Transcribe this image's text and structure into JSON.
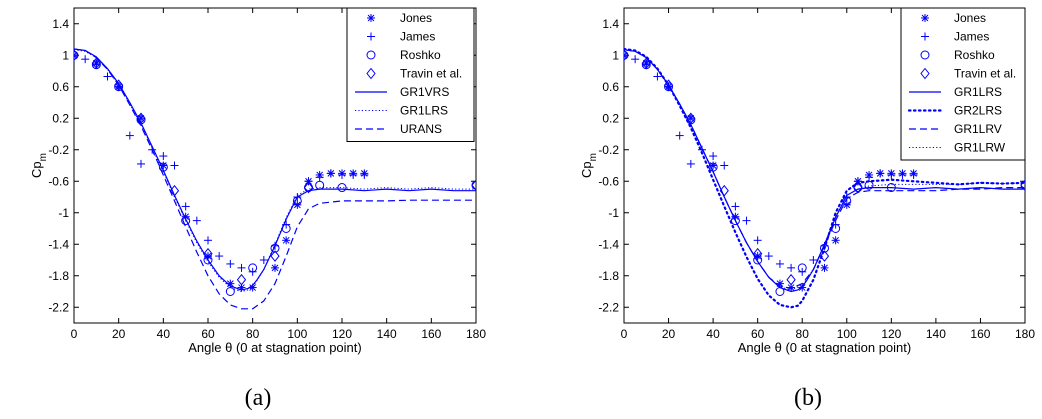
{
  "chart_data": [
    {
      "type": "line",
      "caption": "(a)",
      "xlabel": "Angle θ (0 at stagnation point)",
      "ylabel": "Cp",
      "ylabel_sub": "m",
      "xlim": [
        0,
        180
      ],
      "ylim": [
        -2.4,
        1.6
      ],
      "xticks": [
        "0",
        "20",
        "40",
        "60",
        "80",
        "100",
        "120",
        "140",
        "160",
        "180"
      ],
      "yticks": [
        "1.4",
        "1",
        "0.6",
        "0.2",
        "-0.2",
        "-0.6",
        "-1",
        "-1.4",
        "-1.8",
        "-2.2"
      ],
      "legend_position": "top-right",
      "series": [
        {
          "name": "Jones",
          "kind": "marker",
          "marker": "asterisk",
          "x": [
            0,
            10,
            20,
            30,
            40,
            50,
            60,
            70,
            75,
            80,
            90,
            95,
            100,
            105,
            110,
            115,
            120,
            125,
            130
          ],
          "y": [
            1.0,
            0.9,
            0.6,
            0.2,
            -0.4,
            -1.05,
            -1.55,
            -1.9,
            -1.95,
            -1.95,
            -1.7,
            -1.35,
            -0.9,
            -0.6,
            -0.52,
            -0.5,
            -0.5,
            -0.5,
            -0.5
          ]
        },
        {
          "name": "James",
          "kind": "marker",
          "marker": "plus",
          "x": [
            0,
            5,
            10,
            15,
            20,
            25,
            30,
            35,
            40,
            45,
            50,
            55,
            60,
            65,
            70,
            75,
            80,
            85,
            90,
            95,
            100,
            105,
            110,
            115,
            120,
            125,
            130
          ],
          "y": [
            0.98,
            0.95,
            0.88,
            0.73,
            0.6,
            -0.02,
            -0.38,
            -0.2,
            -0.28,
            -0.4,
            -0.92,
            -1.1,
            -1.35,
            -1.55,
            -1.65,
            -1.7,
            -1.75,
            -1.6,
            -1.42,
            -1.15,
            -0.8,
            -0.6,
            -0.55,
            -0.5,
            -0.52,
            -0.52,
            -0.52
          ]
        },
        {
          "name": "Roshko",
          "kind": "marker",
          "marker": "circle",
          "x": [
            0,
            10,
            20,
            30,
            40,
            50,
            60,
            70,
            80,
            90,
            95,
            100,
            105,
            110,
            120,
            180
          ],
          "y": [
            1.0,
            0.88,
            0.6,
            0.18,
            -0.42,
            -1.1,
            -1.6,
            -2.0,
            -1.7,
            -1.45,
            -1.2,
            -0.85,
            -0.68,
            -0.65,
            -0.68,
            -0.65
          ]
        },
        {
          "name": "Travin et al.",
          "kind": "marker",
          "marker": "diamond",
          "x": [
            0,
            10,
            20,
            30,
            45,
            60,
            75,
            90,
            105,
            180
          ],
          "y": [
            1.0,
            0.9,
            0.62,
            0.2,
            -0.72,
            -1.52,
            -1.85,
            -1.55,
            -0.68,
            -0.65
          ]
        },
        {
          "name": "GR1VRS",
          "kind": "line",
          "style": "solid",
          "x": [
            0,
            5,
            10,
            15,
            20,
            25,
            30,
            35,
            40,
            45,
            50,
            55,
            60,
            65,
            70,
            75,
            78,
            80,
            82,
            85,
            90,
            95,
            100,
            105,
            110,
            120,
            130,
            140,
            150,
            160,
            170,
            180
          ],
          "y": [
            1.08,
            1.06,
            0.98,
            0.83,
            0.64,
            0.4,
            0.14,
            -0.16,
            -0.46,
            -0.78,
            -1.08,
            -1.36,
            -1.6,
            -1.8,
            -1.93,
            -1.98,
            -1.96,
            -1.92,
            -1.85,
            -1.72,
            -1.42,
            -1.08,
            -0.8,
            -0.72,
            -0.7,
            -0.7,
            -0.72,
            -0.7,
            -0.72,
            -0.7,
            -0.72,
            -0.72
          ]
        },
        {
          "name": "GR1LRS",
          "kind": "line",
          "style": "dotted",
          "x": [
            0,
            5,
            10,
            15,
            20,
            25,
            30,
            35,
            40,
            45,
            50,
            55,
            60,
            65,
            70,
            75,
            78,
            80,
            82,
            85,
            90,
            95,
            100,
            105,
            110,
            120,
            130,
            140,
            150,
            160,
            170,
            180
          ],
          "y": [
            1.07,
            1.05,
            0.97,
            0.82,
            0.62,
            0.38,
            0.12,
            -0.18,
            -0.48,
            -0.8,
            -1.1,
            -1.38,
            -1.62,
            -1.82,
            -1.95,
            -2.0,
            -1.98,
            -1.94,
            -1.86,
            -1.72,
            -1.4,
            -1.06,
            -0.78,
            -0.7,
            -0.68,
            -0.68,
            -0.7,
            -0.68,
            -0.7,
            -0.68,
            -0.7,
            -0.7
          ]
        },
        {
          "name": "URANS",
          "kind": "line",
          "style": "dashed",
          "x": [
            0,
            5,
            10,
            15,
            20,
            25,
            30,
            35,
            40,
            45,
            50,
            55,
            60,
            65,
            70,
            75,
            80,
            85,
            90,
            95,
            100,
            105,
            110,
            120,
            130,
            140,
            150,
            160,
            170,
            180
          ],
          "y": [
            1.08,
            1.06,
            0.97,
            0.82,
            0.62,
            0.37,
            0.1,
            -0.2,
            -0.52,
            -0.85,
            -1.18,
            -1.5,
            -1.8,
            -2.03,
            -2.17,
            -2.22,
            -2.22,
            -2.12,
            -1.9,
            -1.55,
            -1.18,
            -0.95,
            -0.88,
            -0.85,
            -0.85,
            -0.85,
            -0.84,
            -0.84,
            -0.84,
            -0.84
          ]
        }
      ]
    },
    {
      "type": "line",
      "caption": "(b)",
      "xlabel": "Angle θ (0 at stagnation point)",
      "ylabel": "Cp",
      "ylabel_sub": "m",
      "xlim": [
        0,
        180
      ],
      "ylim": [
        -2.4,
        1.6
      ],
      "xticks": [
        "0",
        "20",
        "40",
        "60",
        "80",
        "100",
        "120",
        "140",
        "160",
        "180"
      ],
      "yticks": [
        "1.4",
        "1",
        "0.6",
        "0.2",
        "-0.2",
        "-0.6",
        "-1",
        "-1.4",
        "-1.8",
        "-2.2"
      ],
      "legend_position": "top-right",
      "series": [
        {
          "name": "Jones",
          "kind": "marker",
          "marker": "asterisk",
          "x": [
            0,
            10,
            20,
            30,
            40,
            50,
            60,
            70,
            75,
            80,
            90,
            95,
            100,
            105,
            110,
            115,
            120,
            125,
            130
          ],
          "y": [
            1.0,
            0.9,
            0.6,
            0.2,
            -0.4,
            -1.05,
            -1.55,
            -1.9,
            -1.95,
            -1.95,
            -1.7,
            -1.35,
            -0.9,
            -0.6,
            -0.52,
            -0.5,
            -0.5,
            -0.5,
            -0.5
          ]
        },
        {
          "name": "James",
          "kind": "marker",
          "marker": "plus",
          "x": [
            0,
            5,
            10,
            15,
            20,
            25,
            30,
            35,
            40,
            45,
            50,
            55,
            60,
            65,
            70,
            75,
            80,
            85,
            90,
            95,
            100,
            105,
            110,
            115,
            120,
            125,
            130
          ],
          "y": [
            0.98,
            0.95,
            0.88,
            0.73,
            0.6,
            -0.02,
            -0.38,
            -0.2,
            -0.28,
            -0.4,
            -0.92,
            -1.1,
            -1.35,
            -1.55,
            -1.65,
            -1.7,
            -1.75,
            -1.6,
            -1.42,
            -1.15,
            -0.8,
            -0.6,
            -0.55,
            -0.5,
            -0.52,
            -0.52,
            -0.52
          ]
        },
        {
          "name": "Roshko",
          "kind": "marker",
          "marker": "circle",
          "x": [
            0,
            10,
            20,
            30,
            40,
            50,
            60,
            70,
            80,
            90,
            95,
            100,
            105,
            110,
            120,
            180
          ],
          "y": [
            1.0,
            0.88,
            0.6,
            0.18,
            -0.42,
            -1.1,
            -1.6,
            -2.0,
            -1.7,
            -1.45,
            -1.2,
            -0.85,
            -0.68,
            -0.65,
            -0.68,
            -0.65
          ]
        },
        {
          "name": "Travin et al.",
          "kind": "marker",
          "marker": "diamond",
          "x": [
            0,
            10,
            20,
            30,
            45,
            60,
            75,
            90,
            105,
            180
          ],
          "y": [
            1.0,
            0.9,
            0.62,
            0.2,
            -0.72,
            -1.52,
            -1.85,
            -1.55,
            -0.68,
            -0.65
          ]
        },
        {
          "name": "GR1LRS",
          "kind": "line",
          "style": "solid",
          "x": [
            0,
            5,
            10,
            15,
            20,
            25,
            30,
            35,
            40,
            45,
            50,
            55,
            60,
            65,
            70,
            75,
            78,
            80,
            82,
            85,
            90,
            95,
            100,
            105,
            110,
            120,
            130,
            140,
            150,
            160,
            170,
            180
          ],
          "y": [
            1.07,
            1.05,
            0.97,
            0.82,
            0.62,
            0.38,
            0.12,
            -0.18,
            -0.48,
            -0.8,
            -1.1,
            -1.38,
            -1.62,
            -1.82,
            -1.95,
            -2.0,
            -1.98,
            -1.94,
            -1.86,
            -1.72,
            -1.4,
            -1.06,
            -0.78,
            -0.7,
            -0.68,
            -0.68,
            -0.7,
            -0.68,
            -0.7,
            -0.68,
            -0.7,
            -0.7
          ]
        },
        {
          "name": "GR2LRS",
          "kind": "line",
          "style": "dotted-heavy",
          "x": [
            0,
            5,
            10,
            15,
            20,
            25,
            30,
            35,
            40,
            45,
            50,
            55,
            60,
            65,
            70,
            75,
            78,
            80,
            85,
            90,
            95,
            100,
            105,
            110,
            120,
            130,
            140,
            150,
            160,
            170,
            180
          ],
          "y": [
            1.08,
            1.06,
            0.98,
            0.83,
            0.62,
            0.36,
            0.08,
            -0.24,
            -0.58,
            -0.92,
            -1.25,
            -1.56,
            -1.84,
            -2.05,
            -2.17,
            -2.2,
            -2.18,
            -2.12,
            -1.85,
            -1.45,
            -1.0,
            -0.72,
            -0.62,
            -0.6,
            -0.58,
            -0.6,
            -0.62,
            -0.64,
            -0.62,
            -0.63,
            -0.62
          ]
        },
        {
          "name": "GR1LRV",
          "kind": "line",
          "style": "dashed",
          "x": [
            0,
            5,
            10,
            15,
            20,
            25,
            30,
            35,
            40,
            45,
            50,
            55,
            60,
            65,
            70,
            75,
            80,
            85,
            90,
            95,
            100,
            105,
            110,
            120,
            130,
            140,
            150,
            160,
            170,
            180
          ],
          "y": [
            1.07,
            1.05,
            0.97,
            0.82,
            0.62,
            0.38,
            0.12,
            -0.18,
            -0.48,
            -0.8,
            -1.1,
            -1.38,
            -1.62,
            -1.82,
            -1.93,
            -1.96,
            -1.9,
            -1.72,
            -1.42,
            -1.1,
            -0.82,
            -0.74,
            -0.72,
            -0.72,
            -0.72,
            -0.72,
            -0.7,
            -0.7,
            -0.68,
            -0.68
          ]
        },
        {
          "name": "GR1LRW",
          "kind": "line",
          "style": "dotted",
          "x": [
            0,
            5,
            10,
            15,
            20,
            25,
            30,
            35,
            40,
            45,
            50,
            55,
            60,
            65,
            70,
            75,
            80,
            85,
            90,
            95,
            100,
            105,
            110,
            120,
            130,
            140,
            150,
            160,
            170,
            180
          ],
          "y": [
            1.07,
            1.05,
            0.97,
            0.82,
            0.62,
            0.38,
            0.12,
            -0.18,
            -0.48,
            -0.8,
            -1.1,
            -1.38,
            -1.62,
            -1.82,
            -1.94,
            -1.98,
            -1.92,
            -1.72,
            -1.4,
            -1.05,
            -0.78,
            -0.7,
            -0.66,
            -0.64,
            -0.64,
            -0.64,
            -0.64,
            -0.62,
            -0.63,
            -0.62
          ]
        }
      ]
    }
  ],
  "style": {
    "series_color": "#0000ff",
    "axis_color": "#000000"
  }
}
